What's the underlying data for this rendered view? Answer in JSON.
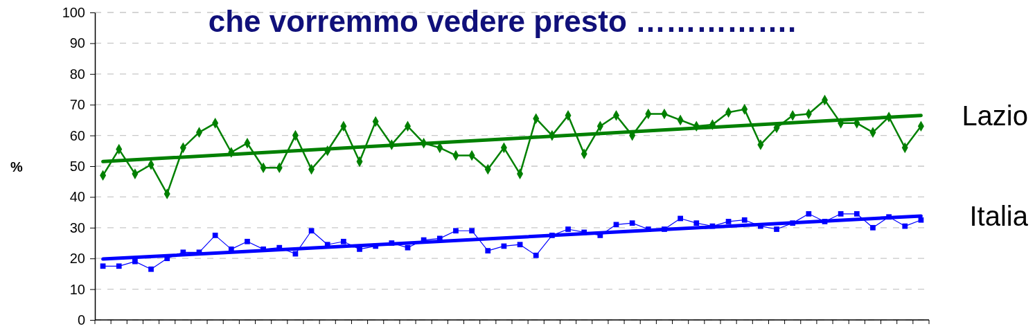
{
  "chart_data": {
    "type": "line",
    "title": "che vorremmo vedere presto …………….",
    "ylabel": "%",
    "categories": [
      null,
      null,
      null,
      null,
      null,
      null,
      null,
      null,
      null,
      null,
      null,
      null,
      null,
      null,
      null,
      null,
      null,
      null,
      null,
      null,
      null,
      null,
      null,
      null,
      null,
      null,
      null,
      null,
      null,
      null,
      null,
      null,
      null,
      null,
      null,
      null,
      null,
      null,
      null,
      null,
      null,
      null,
      null,
      null,
      null,
      null,
      null,
      null,
      null,
      null,
      null,
      null
    ],
    "ylim": [
      0,
      100
    ],
    "yticks": [
      0,
      10,
      20,
      30,
      40,
      50,
      60,
      70,
      80,
      90,
      100
    ],
    "grid": "y",
    "series": [
      {
        "color": "#008000",
        "marker": "diamond",
        "values": [
          47,
          55.5,
          47.5,
          50.5,
          41,
          56,
          61,
          64,
          54.5,
          57.5,
          49.5,
          49.5,
          60,
          49,
          55,
          63,
          51.5,
          64.5,
          57,
          63,
          57.5,
          56,
          53.5,
          53.5,
          49,
          56,
          47.5,
          65.5,
          60,
          66.5,
          54,
          63,
          66.5,
          60,
          67,
          67,
          65,
          63,
          63.5,
          67.5,
          68.5,
          57,
          62.5,
          66.5,
          67,
          71.5,
          64,
          64,
          61,
          66,
          56,
          63
        ]
      },
      {
        "color": "#0000ff",
        "marker": "square",
        "values": [
          17.5,
          17.5,
          19,
          16.5,
          20,
          22,
          22,
          27.5,
          23,
          25.5,
          23,
          23.5,
          21.5,
          29,
          24.5,
          25.5,
          23,
          24,
          25,
          23.5,
          26,
          26.5,
          29,
          29,
          22.5,
          24,
          24.5,
          21,
          27.5,
          29.5,
          28.5,
          27.5,
          31,
          31.5,
          29.5,
          29.5,
          33,
          31.5,
          30.5,
          32,
          32.5,
          30.5,
          29.5,
          31.5,
          34.5,
          32,
          34.5,
          34.5,
          30,
          33.5,
          30.5,
          32.5
        ]
      },
      {
        "name": "Lazio",
        "type": "line",
        "color": "#008000",
        "marker": "none",
        "values": [
          51.5,
          null,
          null,
          null,
          null,
          null,
          null,
          null,
          null,
          null,
          null,
          null,
          null,
          null,
          null,
          null,
          null,
          null,
          null,
          null,
          null,
          null,
          null,
          null,
          null,
          null,
          null,
          null,
          null,
          null,
          null,
          null,
          null,
          null,
          null,
          null,
          null,
          null,
          null,
          null,
          null,
          null,
          null,
          null,
          null,
          null,
          null,
          null,
          null,
          null,
          null,
          66.5
        ]
      },
      {
        "name": "Italia",
        "type": "line",
        "color": "#0000ff",
        "marker": "none",
        "values": [
          19.8,
          null,
          null,
          null,
          null,
          null,
          null,
          null,
          null,
          null,
          null,
          null,
          null,
          null,
          null,
          null,
          null,
          null,
          null,
          null,
          null,
          null,
          null,
          null,
          null,
          null,
          null,
          null,
          null,
          null,
          null,
          null,
          null,
          null,
          null,
          null,
          null,
          null,
          null,
          null,
          null,
          null,
          null,
          null,
          null,
          null,
          null,
          null,
          null,
          null,
          null,
          33.8
        ]
      }
    ]
  }
}
